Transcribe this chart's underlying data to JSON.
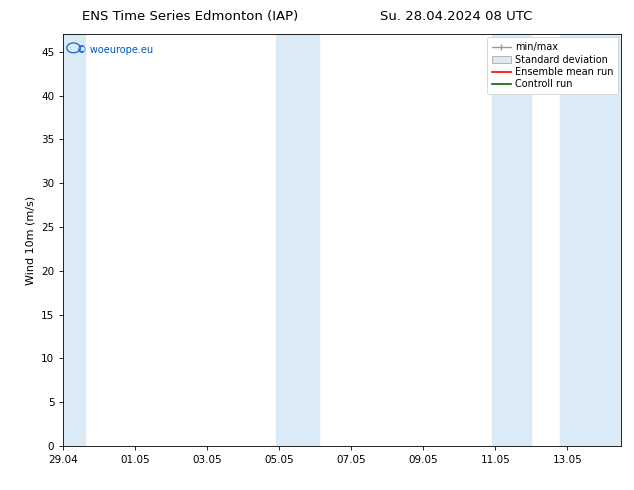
{
  "title_left": "ENS Time Series Edmonton (IAP)",
  "title_right": "Su. 28.04.2024 08 UTC",
  "ylabel": "Wind 10m (m/s)",
  "watermark": "© woeurope.eu",
  "watermark_color": "#0055cc",
  "background_color": "#ffffff",
  "plot_bg_color": "#ffffff",
  "ylim": [
    0,
    47
  ],
  "yticks": [
    0,
    5,
    10,
    15,
    20,
    25,
    30,
    35,
    40,
    45
  ],
  "xlim": [
    0,
    15.5
  ],
  "xtick_labels": [
    "29.04",
    "01.05",
    "03.05",
    "05.05",
    "07.05",
    "09.05",
    "11.05",
    "13.05"
  ],
  "xtick_positions": [
    0,
    2,
    4,
    6,
    8,
    10,
    12,
    14
  ],
  "shaded_bands": [
    [
      -0.1,
      0.6
    ],
    [
      5.9,
      7.1
    ],
    [
      11.9,
      13.0
    ],
    [
      13.8,
      15.6
    ]
  ],
  "shaded_color": "#daeaf7",
  "legend_labels": [
    "min/max",
    "Standard deviation",
    "Ensemble mean run",
    "Controll run"
  ],
  "legend_colors": [
    "#999999",
    "#cccccc",
    "#ff0000",
    "#006600"
  ],
  "title_fontsize": 9.5,
  "tick_fontsize": 7.5,
  "ylabel_fontsize": 8,
  "legend_fontsize": 7
}
